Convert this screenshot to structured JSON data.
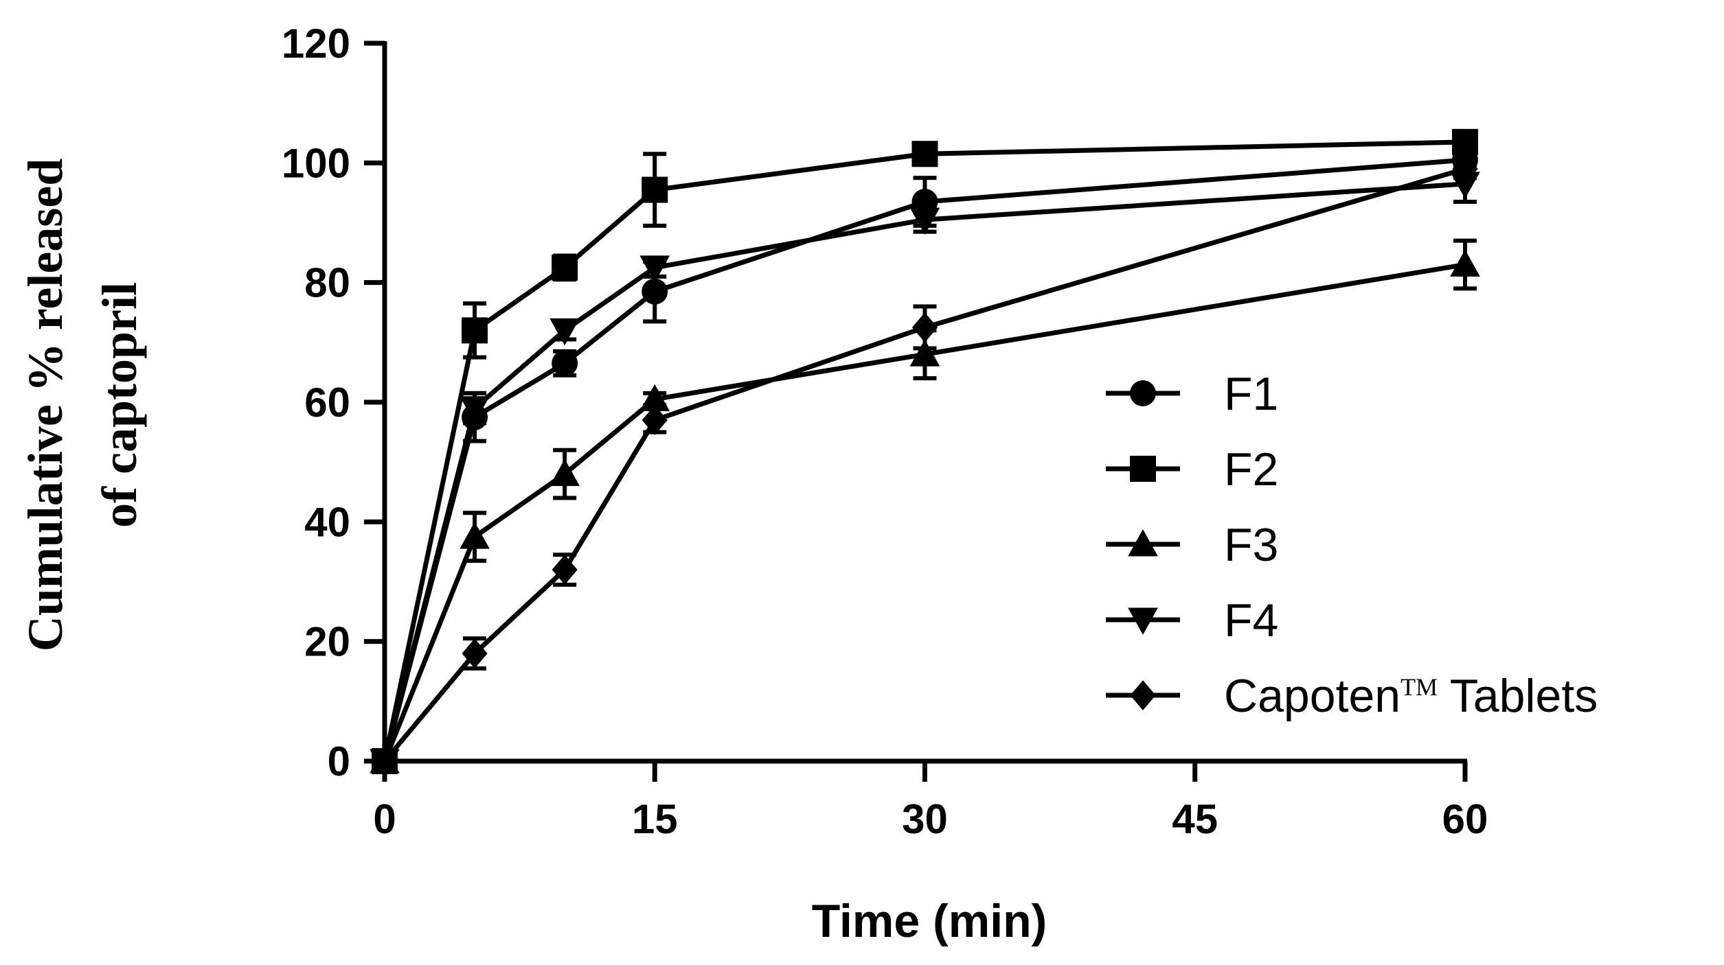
{
  "chart_data": {
    "type": "line",
    "title": "",
    "xlabel": "Time (min)",
    "ylabel_lines": [
      "Cumulative % released",
      "of captopril"
    ],
    "x_ticks": [
      0,
      15,
      30,
      45,
      60
    ],
    "y_ticks": [
      0,
      20,
      40,
      60,
      80,
      100,
      120
    ],
    "xlim": [
      0,
      60
    ],
    "ylim": [
      0,
      120
    ],
    "grid": false,
    "legend_position": "right",
    "series": [
      {
        "name": "F1",
        "marker": "circle",
        "x": [
          0,
          5,
          10,
          15,
          30,
          60
        ],
        "y": [
          0,
          57.5,
          66.5,
          78.5,
          93.5,
          100.5
        ],
        "err": [
          0,
          4,
          2,
          5,
          4,
          1
        ]
      },
      {
        "name": "F2",
        "marker": "square",
        "x": [
          0,
          5,
          10,
          15,
          30,
          60
        ],
        "y": [
          0,
          72,
          82.5,
          95.5,
          101.5,
          103.5
        ],
        "err": [
          0,
          4.5,
          2,
          6,
          1,
          1
        ]
      },
      {
        "name": "F3",
        "marker": "triangle-up",
        "x": [
          0,
          5,
          10,
          15,
          30,
          60
        ],
        "y": [
          0,
          37.5,
          48,
          60.5,
          68,
          83
        ],
        "err": [
          0,
          4,
          4,
          1,
          4,
          4
        ]
      },
      {
        "name": "F4",
        "marker": "triangle-down",
        "x": [
          0,
          5,
          10,
          15,
          30,
          60
        ],
        "y": [
          0,
          59,
          72,
          82.5,
          90.5,
          96.5
        ],
        "err": [
          0,
          2.5,
          1.5,
          1.5,
          2,
          3
        ]
      },
      {
        "name": "Capoten",
        "name_sup": "TM",
        "name_suffix": " Tablets",
        "marker": "diamond",
        "x": [
          0,
          5,
          10,
          15,
          30,
          60
        ],
        "y": [
          0,
          18,
          32,
          57,
          72.5,
          99
        ],
        "err": [
          0,
          2.5,
          2.5,
          2,
          3.5,
          1.5
        ]
      }
    ]
  }
}
